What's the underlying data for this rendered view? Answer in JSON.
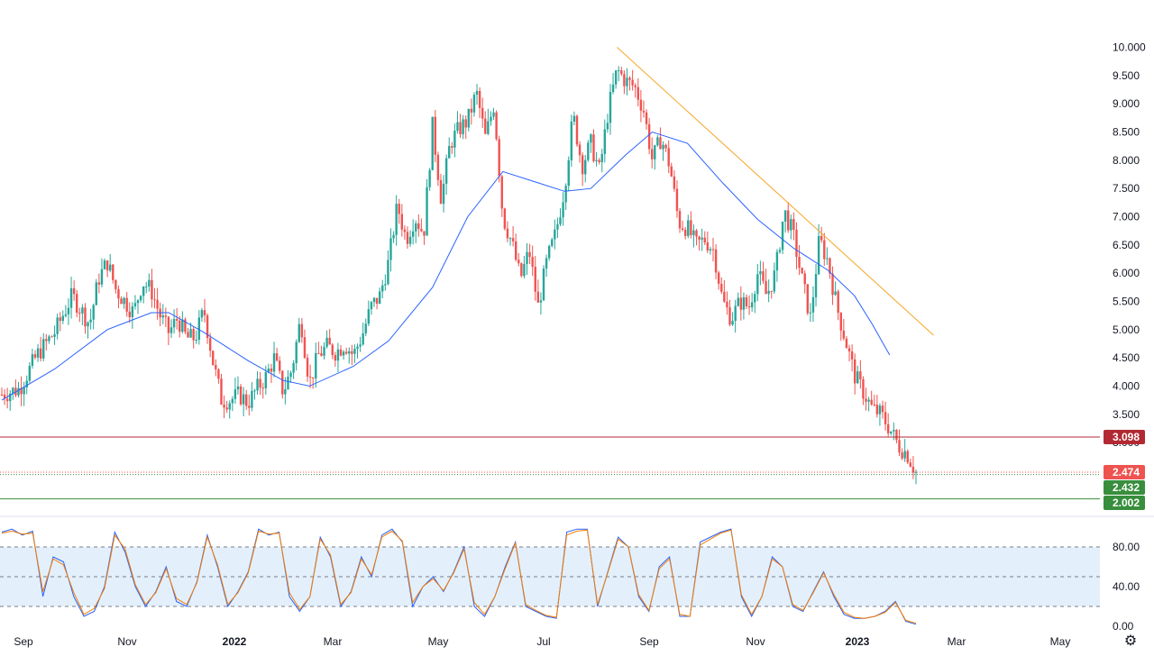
{
  "colors": {
    "up": "#26a69a",
    "down": "#ef5350",
    "ma": "#2962ff",
    "trend": "#f5a623",
    "resistance": "#b22833",
    "current": "#ef5350",
    "support": "#388e3c",
    "stoch_k": "#2962ff",
    "stoch_d": "#f57c00",
    "stoch_band": "#e3f0fc"
  },
  "chart_data": [
    {
      "type": "candlestick",
      "price_axis_ticks": [
        "10.000",
        "9.500",
        "9.000",
        "8.500",
        "8.000",
        "7.500",
        "7.000",
        "6.500",
        "6.000",
        "5.500",
        "5.000",
        "4.500",
        "4.000",
        "3.500",
        "3.000"
      ],
      "time_axis_labels": [
        "Sep",
        "Nov",
        "2022",
        "Mar",
        "May",
        "Jul",
        "Sep",
        "Nov",
        "2023",
        "Mar",
        "May"
      ],
      "ylim": [
        1.9,
        10.2
      ],
      "trend_points": [
        [
          0,
          3.85
        ],
        [
          2,
          3.95
        ],
        [
          4,
          4.55
        ],
        [
          6,
          4.95
        ],
        [
          8,
          5.6
        ],
        [
          10,
          5.1
        ],
        [
          11,
          5.9
        ],
        [
          12,
          6.2
        ],
        [
          13,
          5.7
        ],
        [
          15,
          5.3
        ],
        [
          16,
          5.85
        ],
        [
          17,
          5.7
        ],
        [
          18,
          5.25
        ],
        [
          19,
          4.95
        ],
        [
          20,
          5.2
        ],
        [
          21,
          4.85
        ],
        [
          22,
          4.85
        ],
        [
          23,
          5.35
        ],
        [
          24,
          4.45
        ],
        [
          25,
          3.75
        ],
        [
          26,
          3.75
        ],
        [
          27,
          3.85
        ],
        [
          28,
          3.7
        ],
        [
          29,
          3.95
        ],
        [
          30,
          4.15
        ],
        [
          31,
          4.5
        ],
        [
          32,
          3.9
        ],
        [
          33,
          4.3
        ],
        [
          34,
          5.2
        ],
        [
          35,
          4.05
        ],
        [
          36,
          4.55
        ],
        [
          37,
          4.7
        ],
        [
          38,
          4.6
        ],
        [
          39,
          4.75
        ],
        [
          40,
          4.55
        ],
        [
          41,
          4.9
        ],
        [
          42,
          5.4
        ],
        [
          43,
          5.6
        ],
        [
          44,
          6.2
        ],
        [
          45,
          7.2
        ],
        [
          46,
          6.6
        ],
        [
          47,
          7.0
        ],
        [
          48,
          6.7
        ],
        [
          49,
          8.6
        ],
        [
          50,
          7.3
        ],
        [
          51,
          8.3
        ],
        [
          52,
          8.55
        ],
        [
          53,
          8.7
        ],
        [
          54,
          9.2
        ],
        [
          55,
          8.4
        ],
        [
          56,
          9.0
        ],
        [
          57,
          7.0
        ],
        [
          58,
          6.55
        ],
        [
          59,
          5.9
        ],
        [
          60,
          6.4
        ],
        [
          61,
          5.4
        ],
        [
          62,
          6.2
        ],
        [
          63,
          6.7
        ],
        [
          64,
          7.5
        ],
        [
          65,
          8.8
        ],
        [
          66,
          7.9
        ],
        [
          67,
          8.3
        ],
        [
          68,
          7.8
        ],
        [
          69,
          8.9
        ],
        [
          70,
          9.6
        ],
        [
          71,
          9.4
        ],
        [
          72,
          9.3
        ],
        [
          73,
          8.9
        ],
        [
          74,
          8.0
        ],
        [
          75,
          8.4
        ],
        [
          76,
          7.9
        ],
        [
          77,
          6.9
        ],
        [
          78,
          6.8
        ],
        [
          79,
          6.5
        ],
        [
          80,
          6.6
        ],
        [
          81,
          6.4
        ],
        [
          82,
          5.5
        ],
        [
          83,
          5.2
        ],
        [
          84,
          5.5
        ],
        [
          85,
          5.4
        ],
        [
          86,
          6.0
        ],
        [
          87,
          5.6
        ],
        [
          88,
          6.0
        ],
        [
          89,
          7.1
        ],
        [
          90,
          6.7
        ],
        [
          91,
          5.9
        ],
        [
          92,
          5.2
        ],
        [
          93,
          6.6
        ],
        [
          94,
          6.2
        ],
        [
          95,
          5.4
        ],
        [
          96,
          4.8
        ],
        [
          97,
          4.2
        ],
        [
          98,
          3.9
        ],
        [
          99,
          3.6
        ],
        [
          100,
          3.5
        ],
        [
          101,
          3.25
        ],
        [
          102,
          2.95
        ],
        [
          103,
          2.8
        ],
        [
          104,
          2.474
        ]
      ],
      "moving_average": {
        "points": [
          [
            0,
            3.75
          ],
          [
            6,
            4.3
          ],
          [
            12,
            5.0
          ],
          [
            17,
            5.3
          ],
          [
            19,
            5.3
          ],
          [
            23,
            4.95
          ],
          [
            28,
            4.45
          ],
          [
            32,
            4.1
          ],
          [
            35,
            4.0
          ],
          [
            40,
            4.35
          ],
          [
            44,
            4.8
          ],
          [
            49,
            5.75
          ],
          [
            53,
            7.0
          ],
          [
            57,
            7.8
          ],
          [
            61,
            7.6
          ],
          [
            64,
            7.45
          ],
          [
            67,
            7.5
          ],
          [
            71,
            8.1
          ],
          [
            74,
            8.5
          ],
          [
            78,
            8.3
          ],
          [
            82,
            7.6
          ],
          [
            86,
            6.95
          ],
          [
            90,
            6.45
          ],
          [
            94,
            6.05
          ],
          [
            97,
            5.6
          ],
          [
            99,
            5.1
          ],
          [
            101,
            4.55
          ]
        ]
      },
      "trendline": {
        "from": [
          70,
          10.0
        ],
        "to": [
          106,
          4.9
        ]
      },
      "levels": [
        {
          "name": "resistance",
          "value": 3.098,
          "label": "3.098"
        },
        {
          "name": "current",
          "value": 2.474,
          "label": "2.474"
        },
        {
          "name": "support",
          "value": 2.432,
          "label": "2.432"
        },
        {
          "name": "support-2",
          "value": 2.002,
          "label": "2.002"
        }
      ]
    },
    {
      "type": "line",
      "indicator": "stochastic",
      "ylim": [
        0,
        100
      ],
      "band": [
        20,
        80
      ],
      "mid": 50,
      "axis_ticks": [
        "80.00",
        "40.00",
        "0.00"
      ],
      "series": [
        {
          "values": [
            95,
            98,
            92,
            96,
            30,
            70,
            65,
            30,
            10,
            15,
            40,
            95,
            75,
            40,
            20,
            35,
            60,
            25,
            20,
            45,
            92,
            60,
            20,
            35,
            55,
            98,
            92,
            95,
            30,
            15,
            30,
            90,
            70,
            20,
            35,
            70,
            50,
            92,
            98,
            85,
            20,
            40,
            50,
            35,
            55,
            80,
            20,
            10,
            30,
            60,
            85,
            20,
            15,
            10,
            8,
            95,
            98,
            98,
            20,
            55,
            90,
            80,
            30,
            15,
            60,
            70,
            10,
            10,
            85,
            90,
            95,
            98,
            30,
            10,
            30,
            70,
            60,
            20,
            15,
            35,
            55,
            30,
            12,
            8,
            8,
            10,
            15,
            25,
            5,
            2
          ]
        },
        {
          "values": [
            94,
            96,
            93,
            94,
            35,
            68,
            62,
            34,
            12,
            18,
            38,
            92,
            78,
            42,
            22,
            34,
            58,
            28,
            22,
            44,
            90,
            62,
            22,
            34,
            54,
            96,
            93,
            94,
            34,
            17,
            30,
            88,
            72,
            22,
            34,
            68,
            52,
            90,
            96,
            86,
            24,
            40,
            48,
            36,
            54,
            78,
            24,
            12,
            30,
            58,
            84,
            22,
            16,
            11,
            9,
            92,
            96,
            97,
            22,
            54,
            88,
            80,
            32,
            16,
            58,
            68,
            12,
            10,
            82,
            88,
            94,
            97,
            32,
            12,
            30,
            68,
            60,
            22,
            16,
            34,
            54,
            32,
            14,
            9,
            8,
            10,
            14,
            24,
            6,
            3
          ]
        }
      ]
    }
  ]
}
